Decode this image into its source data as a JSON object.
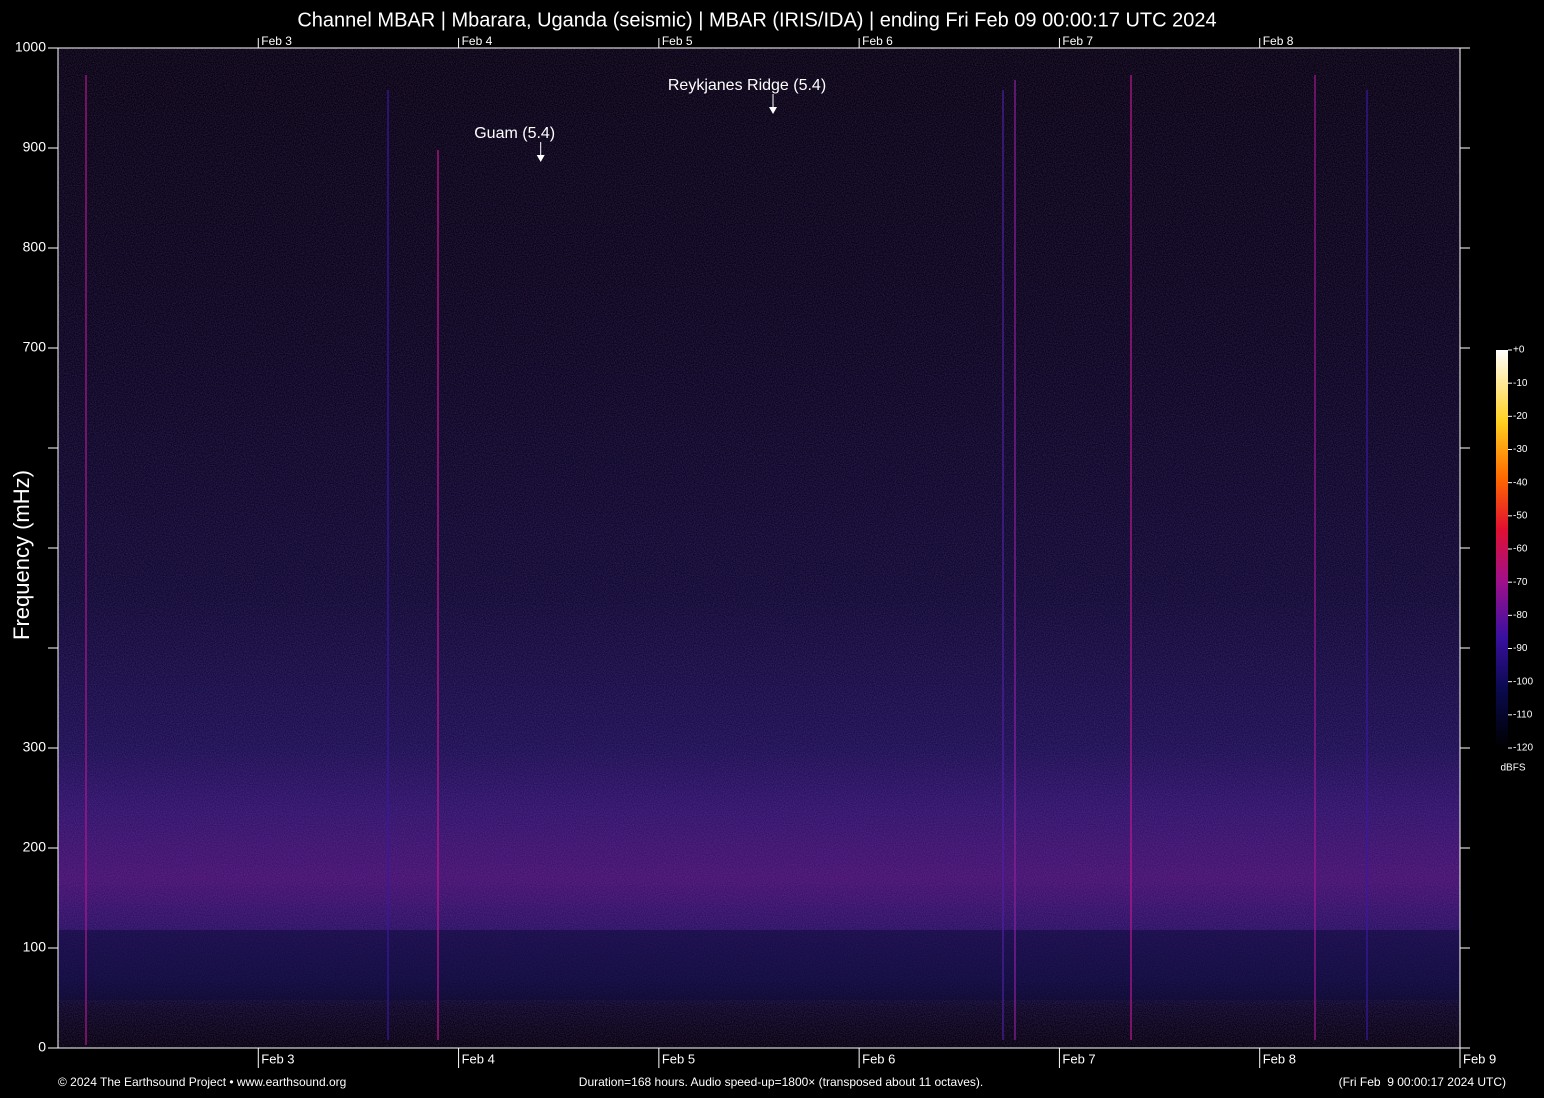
{
  "chart_data": {
    "type": "spectrogram",
    "title": "Channel MBAR | Mbarara, Uganda (seismic) | MBAR (IRIS/IDA) | ending Fri Feb 09 00:00:17 UTC 2024",
    "y_label": "Frequency (mHz)",
    "ylim": [
      0,
      1000
    ],
    "yticks": [
      0,
      100,
      200,
      300,
      700,
      800,
      900,
      1000
    ],
    "yminor_ticks": [
      400,
      500,
      600
    ],
    "xlim": [
      0,
      7
    ],
    "xticks": [
      {
        "value": 1,
        "label": "Feb 3"
      },
      {
        "value": 2,
        "label": "Feb 4"
      },
      {
        "value": 3,
        "label": "Feb 5"
      },
      {
        "value": 4,
        "label": "Feb 6"
      },
      {
        "value": 5,
        "label": "Feb 7"
      },
      {
        "value": 6,
        "label": "Feb 8"
      },
      {
        "value": 7,
        "label": "Feb 9"
      }
    ],
    "annotations": [
      {
        "text": "Guam (5.4)",
        "x": 2.41,
        "y": 886
      },
      {
        "text": "Reykjanes Ridge (5.4)",
        "x": 3.57,
        "y": 934
      }
    ],
    "colorbar": {
      "lim": [
        -120,
        0
      ],
      "ticks": [
        {
          "value": 0,
          "label": "+0"
        },
        -10,
        -20,
        -30,
        -40,
        -50,
        -60,
        -70,
        -80,
        -90,
        -100,
        -110,
        -120
      ],
      "label": "dBFS"
    },
    "footer": {
      "left": "© 2024 The Earthsound Project • www.earthsound.org",
      "center": "Duration=168 hours. Audio speed-up=1800× (transposed about 11 octaves).",
      "right": "(Fri Feb  9 00:00:17 2024 UTC)"
    }
  }
}
